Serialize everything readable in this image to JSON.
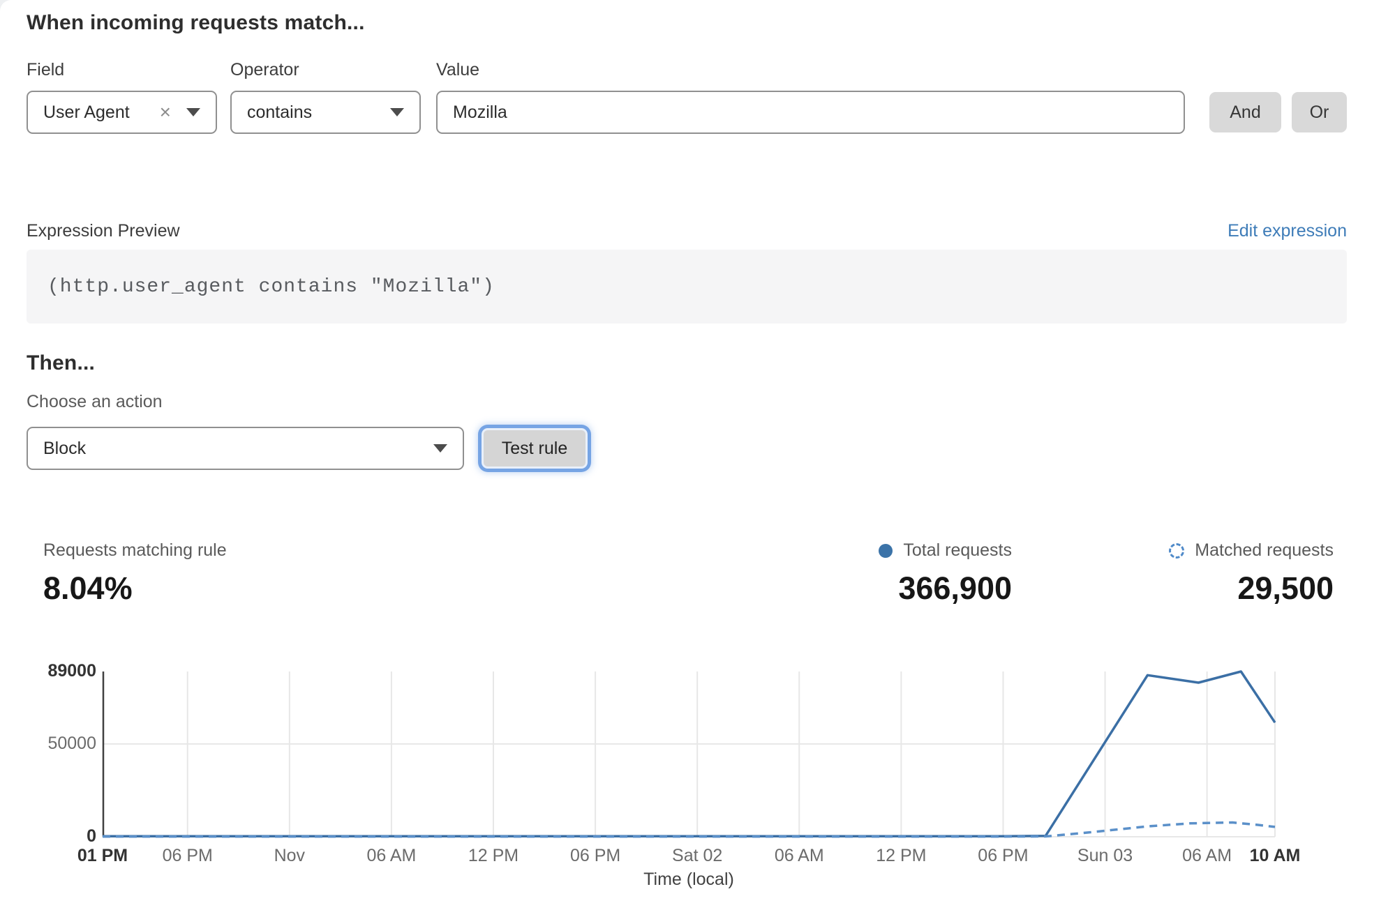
{
  "match_section": {
    "title": "When incoming requests match...",
    "field": {
      "label": "Field",
      "value": "User Agent"
    },
    "operator": {
      "label": "Operator",
      "value": "contains"
    },
    "value": {
      "label": "Value",
      "value": "Mozilla"
    },
    "and_label": "And",
    "or_label": "Or"
  },
  "expression": {
    "label": "Expression Preview",
    "edit_link": "Edit expression",
    "code": "(http.user_agent contains \"Mozilla\")"
  },
  "action_section": {
    "title": "Then...",
    "choose_label": "Choose an action",
    "action_value": "Block",
    "test_button": "Test rule"
  },
  "stats": {
    "matching": {
      "label": "Requests matching rule",
      "value": "8.04%"
    },
    "total": {
      "label": "Total requests",
      "value": "366,900"
    },
    "matched": {
      "label": "Matched requests",
      "value": "29,500"
    }
  },
  "colors": {
    "link_blue": "#3e7cb8",
    "solid_series": "#3b6fa5",
    "dashed_series": "#5b90c9",
    "legend_dot": "#3b73a8",
    "button_gray": "#d9d9d9",
    "focus_ring": "#76a4e4",
    "grid": "#e7e7e7",
    "axis": "#404040"
  },
  "chart_data": {
    "type": "line",
    "title": "",
    "xlabel": "Time (local)",
    "ylabel": "",
    "ylim": [
      0,
      89000
    ],
    "x_unit": "hours from 01 PM Fri",
    "x_range": [
      0,
      69
    ],
    "grid": true,
    "legend_position": "top-right",
    "y_ticks": [
      {
        "v": 89000,
        "label": "89000",
        "bold": true
      },
      {
        "v": 50000,
        "label": "50000",
        "bold": false
      },
      {
        "v": 0,
        "label": "0",
        "bold": true
      }
    ],
    "x_ticks": [
      {
        "t": 0,
        "label": "01 PM",
        "bold": true
      },
      {
        "t": 5,
        "label": "06 PM",
        "bold": false
      },
      {
        "t": 11,
        "label": "Nov",
        "bold": false
      },
      {
        "t": 17,
        "label": "06 AM",
        "bold": false
      },
      {
        "t": 23,
        "label": "12 PM",
        "bold": false
      },
      {
        "t": 29,
        "label": "06 PM",
        "bold": false
      },
      {
        "t": 35,
        "label": "Sat 02",
        "bold": false
      },
      {
        "t": 41,
        "label": "06 AM",
        "bold": false
      },
      {
        "t": 47,
        "label": "12 PM",
        "bold": false
      },
      {
        "t": 53,
        "label": "06 PM",
        "bold": false
      },
      {
        "t": 59,
        "label": "Sun 03",
        "bold": false
      },
      {
        "t": 65,
        "label": "06 AM",
        "bold": false
      },
      {
        "t": 69,
        "label": "10 AM",
        "bold": true
      }
    ],
    "series": [
      {
        "name": "Total requests",
        "style": "solid",
        "color": "#3b6fa5",
        "points": [
          [
            0,
            250
          ],
          [
            5,
            300
          ],
          [
            11,
            250
          ],
          [
            17,
            300
          ],
          [
            23,
            250
          ],
          [
            29,
            300
          ],
          [
            35,
            250
          ],
          [
            41,
            300
          ],
          [
            47,
            250
          ],
          [
            53,
            300
          ],
          [
            55.5,
            500
          ],
          [
            61.5,
            87000
          ],
          [
            64.5,
            83000
          ],
          [
            67,
            89000
          ],
          [
            69,
            61500
          ]
        ]
      },
      {
        "name": "Matched requests",
        "style": "dashed",
        "color": "#5b90c9",
        "points": [
          [
            0,
            80
          ],
          [
            5,
            100
          ],
          [
            11,
            80
          ],
          [
            17,
            100
          ],
          [
            23,
            80
          ],
          [
            29,
            100
          ],
          [
            35,
            80
          ],
          [
            41,
            100
          ],
          [
            47,
            80
          ],
          [
            53,
            100
          ],
          [
            55.5,
            200
          ],
          [
            58,
            2300
          ],
          [
            61.5,
            5600
          ],
          [
            64,
            7200
          ],
          [
            66.5,
            7700
          ],
          [
            68,
            6400
          ],
          [
            69,
            5300
          ]
        ]
      }
    ]
  }
}
